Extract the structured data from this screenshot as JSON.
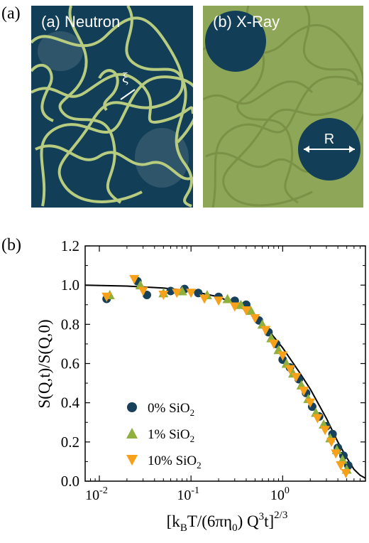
{
  "figure": {
    "panel_a_label": "(a)",
    "panel_b_label": "(b)",
    "neutron_title": "(a) Neutron",
    "xray_title": "(b) X-Ray",
    "xi_label": "ξ",
    "r_label": "R",
    "colors": {
      "navy": "#123e58",
      "olive": "#8ea657",
      "olive_light": "#a9c07a",
      "strand": "#b8cc7f",
      "marker_0": "#17405a",
      "marker_1": "#8fb03d",
      "marker_10": "#f7a11a"
    }
  },
  "chart_data": {
    "type": "scatter",
    "ylabel": "S(Q,t)/S(Q,0)",
    "xlabel": "[kBT/(6πη0) Q3t]2/3",
    "xscale": "log",
    "xlim": [
      0.007,
      8
    ],
    "ylim": [
      0.0,
      1.2
    ],
    "x_ticks": [
      {
        "value": 0.01,
        "base": "10",
        "exp": "-2"
      },
      {
        "value": 0.1,
        "base": "10",
        "exp": "-1"
      },
      {
        "value": 1,
        "base": "10",
        "exp": "0"
      }
    ],
    "y_ticks": [
      "0.0",
      "0.2",
      "0.4",
      "0.6",
      "0.8",
      "1.0",
      "1.2"
    ],
    "legend": [
      {
        "name": "0% SiO2",
        "pct": "0% SiO",
        "sub": "2"
      },
      {
        "name": "1% SiO2",
        "pct": "1% SiO",
        "sub": "2"
      },
      {
        "name": "10% SiO2",
        "pct": "10% SiO",
        "sub": "2"
      }
    ],
    "legend_position": "lower-left",
    "series": [
      {
        "name": "0% SiO2",
        "marker": "circle",
        "points": [
          [
            0.012,
            0.93
          ],
          [
            0.026,
            1.02
          ],
          [
            0.033,
            0.95
          ],
          [
            0.06,
            0.97
          ],
          [
            0.085,
            0.98
          ],
          [
            0.12,
            0.96
          ],
          [
            0.2,
            0.94
          ],
          [
            0.3,
            0.92
          ],
          [
            0.4,
            0.9
          ],
          [
            0.55,
            0.82
          ],
          [
            0.7,
            0.76
          ],
          [
            0.85,
            0.7
          ],
          [
            1.0,
            0.62
          ],
          [
            1.2,
            0.58
          ],
          [
            1.5,
            0.52
          ],
          [
            1.8,
            0.45
          ],
          [
            2.1,
            0.38
          ],
          [
            2.5,
            0.33
          ],
          [
            3.0,
            0.28
          ],
          [
            3.5,
            0.24
          ],
          [
            4.0,
            0.17
          ],
          [
            4.6,
            0.13
          ],
          [
            5.2,
            0.08
          ]
        ]
      },
      {
        "name": "1% SiO2",
        "marker": "triangle-up",
        "points": [
          [
            0.013,
            0.95
          ],
          [
            0.028,
            1.0
          ],
          [
            0.05,
            0.96
          ],
          [
            0.08,
            0.97
          ],
          [
            0.15,
            0.95
          ],
          [
            0.25,
            0.93
          ],
          [
            0.35,
            0.9
          ],
          [
            0.45,
            0.87
          ],
          [
            0.6,
            0.8
          ],
          [
            0.75,
            0.73
          ],
          [
            0.9,
            0.67
          ],
          [
            1.1,
            0.6
          ],
          [
            1.3,
            0.55
          ],
          [
            1.6,
            0.49
          ],
          [
            1.9,
            0.42
          ],
          [
            2.3,
            0.35
          ],
          [
            2.8,
            0.29
          ],
          [
            3.3,
            0.22
          ],
          [
            3.9,
            0.16
          ],
          [
            4.5,
            0.11
          ],
          [
            5.0,
            0.06
          ]
        ]
      },
      {
        "name": "10% SiO2",
        "marker": "triangle-down",
        "points": [
          [
            0.012,
            0.94
          ],
          [
            0.024,
            1.03
          ],
          [
            0.03,
            0.97
          ],
          [
            0.05,
            0.95
          ],
          [
            0.07,
            0.96
          ],
          [
            0.1,
            0.96
          ],
          [
            0.14,
            0.93
          ],
          [
            0.2,
            0.92
          ],
          [
            0.3,
            0.89
          ],
          [
            0.4,
            0.87
          ],
          [
            0.5,
            0.83
          ],
          [
            0.65,
            0.77
          ],
          [
            0.8,
            0.7
          ],
          [
            1.0,
            0.64
          ],
          [
            1.2,
            0.57
          ],
          [
            1.4,
            0.53
          ],
          [
            1.7,
            0.46
          ],
          [
            2.0,
            0.4
          ],
          [
            2.4,
            0.32
          ],
          [
            2.9,
            0.26
          ],
          [
            3.4,
            0.2
          ],
          [
            3.8,
            0.14
          ],
          [
            4.3,
            0.08
          ],
          [
            4.9,
            0.04
          ]
        ]
      }
    ],
    "fit_curve": {
      "points": [
        [
          0.007,
          1.0
        ],
        [
          0.02,
          0.995
        ],
        [
          0.05,
          0.985
        ],
        [
          0.1,
          0.97
        ],
        [
          0.2,
          0.94
        ],
        [
          0.3,
          0.905
        ],
        [
          0.4,
          0.87
        ],
        [
          0.5,
          0.835
        ],
        [
          0.7,
          0.77
        ],
        [
          1.0,
          0.68
        ],
        [
          1.5,
          0.56
        ],
        [
          2.0,
          0.47
        ],
        [
          3.0,
          0.32
        ],
        [
          4.0,
          0.2
        ],
        [
          5.0,
          0.12
        ],
        [
          6.0,
          0.06
        ],
        [
          7.0,
          0.03
        ],
        [
          8.0,
          0.015
        ]
      ]
    }
  }
}
